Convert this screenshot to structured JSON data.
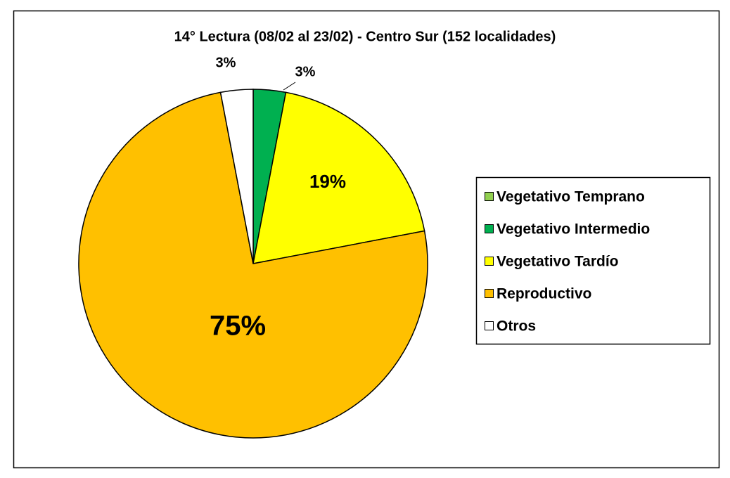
{
  "chart_data": {
    "type": "pie",
    "title": "14° Lectura (08/02 al 23/02) - Centro Sur (152 localidades)",
    "categories": [
      "Vegetativo Temprano",
      "Vegetativo Intermedio",
      "Vegetativo Tardío",
      "Reproductivo",
      "Otros"
    ],
    "values": [
      0,
      3,
      19,
      75,
      3
    ],
    "value_labels": [
      null,
      "3%",
      "19%",
      "75%",
      "3%"
    ],
    "colors": [
      "#92d050",
      "#00b050",
      "#ffff00",
      "#ffc000",
      "#ffffff"
    ],
    "legend": "right"
  }
}
